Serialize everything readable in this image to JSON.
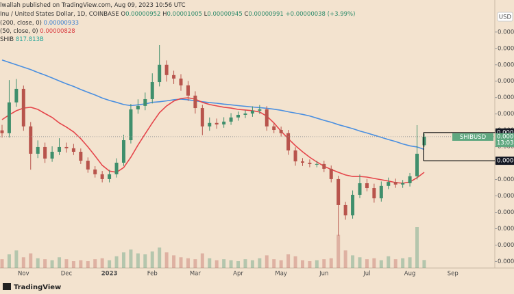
{
  "header": {
    "publisher": "lwallah published on TradingView.com, Aug 09, 2023 10:56 UTC",
    "footer": "TradingView"
  },
  "chart_data": {
    "type": "candlestick",
    "symbol": "Inu / United States Dollar, 1D, COINBASE",
    "ohlc_letters": {
      "open": "O",
      "high": "H",
      "low": "L",
      "close": "C"
    },
    "change": "+0.00000038 (+3.99%)",
    "currency": "USD",
    "up_color": "#3f8f6c",
    "down_color": "#b8544c",
    "categories": [
      null,
      null,
      null,
      "Nov",
      null,
      null,
      null,
      null,
      null,
      "Dec",
      null,
      null,
      null,
      null,
      null,
      "2023",
      null,
      null,
      null,
      null,
      null,
      "Feb",
      null,
      null,
      null,
      null,
      null,
      "Mar",
      null,
      null,
      null,
      null,
      null,
      "Apr",
      null,
      null,
      null,
      null,
      null,
      "May",
      null,
      null,
      null,
      null,
      null,
      "Jun",
      null,
      null,
      null,
      null,
      null,
      "Jul",
      null,
      null,
      null,
      null,
      null,
      "Aug",
      null,
      null,
      null,
      null,
      null,
      "Sep"
    ],
    "open": [
      1.02e-05,
      1.007e-05,
      1.148e-05,
      1.21e-05,
      1.038e-05,
      9.13e-06,
      9.44e-06,
      8.91e-06,
      9.22e-06,
      9.44e-06,
      9.38e-06,
      9.22e-06,
      8.81e-06,
      8.41e-06,
      8.19e-06,
      7.97e-06,
      8.19e-06,
      8.72e-06,
      9.75e-06,
      1.116e-05,
      1.132e-05,
      1.163e-05,
      1.241e-05,
      1.32e-05,
      1.273e-05,
      1.257e-05,
      1.226e-05,
      1.179e-05,
      1.122e-05,
      1.038e-05,
      1.054e-05,
      1.047e-05,
      1.06e-05,
      1.079e-05,
      1.091e-05,
      1.097e-05,
      1.11e-05,
      1.116e-05,
      1.038e-05,
      1.022e-05,
      1.007e-05,
      9.28e-06,
      8.78e-06,
      8.72e-06,
      8.66e-06,
      8.66e-06,
      8.44e-06,
      7.97e-06,
      6.78e-06,
      6.31e-06,
      7.25e-06,
      7.78e-06,
      7.56e-06,
      7.09e-06,
      7.66e-06,
      7.84e-06,
      7.72e-06,
      7.78e-06,
      8.1e-06,
      9.52e-06,
      null,
      null,
      null,
      null
    ],
    "high": [
      1.045e-05,
      1.25e-05,
      1.255e-05,
      1.225e-05,
      1.058e-05,
      9.74e-06,
      9.64e-06,
      9.47e-06,
      9.84e-06,
      9.64e-06,
      9.58e-06,
      9.37e-06,
      8.96e-06,
      8.56e-06,
      8.34e-06,
      8.39e-06,
      8.92e-06,
      1e-05,
      1.141e-05,
      1.162e-05,
      1.193e-05,
      1.281e-05,
      1.41e-05,
      1.34e-05,
      1.293e-05,
      1.277e-05,
      1.246e-05,
      1.199e-05,
      1.137e-05,
      1.079e-05,
      1.074e-05,
      1.08e-05,
      1.099e-05,
      1.106e-05,
      1.112e-05,
      1.13e-05,
      1.136e-05,
      1.131e-05,
      1.053e-05,
      1.037e-05,
      1.022e-05,
      9.43e-06,
      8.93e-06,
      8.87e-06,
      8.81e-06,
      8.81e-06,
      8.59e-06,
      8.12e-06,
      6.93e-06,
      7.45e-06,
      8.18e-06,
      7.98e-06,
      7.76e-06,
      7.86e-06,
      8.04e-06,
      7.99e-06,
      7.93e-06,
      8.25e-06,
      1.044e-05,
      1.005e-05,
      null,
      null,
      null,
      null
    ],
    "low": [
      9.87e-06,
      9.87e-06,
      1.128e-05,
      1.018e-05,
      8.4e-06,
      8.93e-06,
      8.71e-06,
      8.76e-06,
      9.07e-06,
      9.18e-06,
      9.07e-06,
      8.66e-06,
      8.26e-06,
      8.04e-06,
      7.82e-06,
      7.82e-06,
      8.04e-06,
      8.57e-06,
      9.6e-06,
      1.096e-05,
      1.112e-05,
      1.143e-05,
      1.221e-05,
      1.243e-05,
      1.232e-05,
      1.201e-05,
      1.154e-05,
      1.097e-05,
      9.98e-06,
      1.018e-05,
      1.027e-05,
      1.032e-05,
      1.045e-05,
      1.064e-05,
      1.076e-05,
      1.082e-05,
      1.095e-05,
      1.018e-05,
      1.007e-05,
      9.92e-06,
      9.08e-06,
      8.58e-06,
      8.57e-06,
      8.51e-06,
      8.51e-06,
      8.29e-06,
      7.82e-06,
      5.38e-06,
      6.11e-06,
      6.16e-06,
      7.1e-06,
      7.41e-06,
      6.89e-06,
      6.94e-06,
      7.51e-06,
      7.57e-06,
      7.57e-06,
      7.63e-06,
      7.95e-06,
      9.45e-06,
      null,
      null,
      null,
      null
    ],
    "close": [
      1.007e-05,
      1.148e-05,
      1.21e-05,
      1.038e-05,
      9.13e-06,
      9.44e-06,
      8.91e-06,
      9.22e-06,
      9.44e-06,
      9.38e-06,
      9.22e-06,
      8.81e-06,
      8.41e-06,
      8.19e-06,
      7.97e-06,
      8.19e-06,
      8.72e-06,
      9.75e-06,
      1.116e-05,
      1.132e-05,
      1.163e-05,
      1.241e-05,
      1.32e-05,
      1.273e-05,
      1.257e-05,
      1.226e-05,
      1.179e-05,
      1.122e-05,
      1.038e-05,
      1.054e-05,
      1.047e-05,
      1.06e-05,
      1.079e-05,
      1.091e-05,
      1.097e-05,
      1.11e-05,
      1.116e-05,
      1.038e-05,
      1.022e-05,
      1.007e-05,
      9.28e-06,
      8.78e-06,
      8.72e-06,
      8.66e-06,
      8.66e-06,
      8.44e-06,
      7.97e-06,
      6.78e-06,
      6.31e-06,
      7.25e-06,
      7.78e-06,
      7.56e-06,
      7.09e-06,
      7.66e-06,
      7.84e-06,
      7.72e-06,
      7.78e-06,
      8.1e-06,
      9.13e-06,
      9.91e-06,
      null,
      null,
      null,
      null
    ],
    "moving_averages": [
      {
        "name": "(200, close, 0)",
        "color": "#4a8fe0",
        "values": [
          1.342e-05,
          1.331e-05,
          1.32e-05,
          1.309e-05,
          1.298e-05,
          1.285e-05,
          1.273e-05,
          1.26e-05,
          1.246e-05,
          1.233e-05,
          1.221e-05,
          1.207e-05,
          1.194e-05,
          1.182e-05,
          1.168e-05,
          1.157e-05,
          1.148e-05,
          1.138e-05,
          1.133e-05,
          1.137e-05,
          1.141e-05,
          1.148e-05,
          1.151e-05,
          1.155e-05,
          1.16e-05,
          1.163e-05,
          1.16e-05,
          1.155e-05,
          1.151e-05,
          1.147e-05,
          1.144e-05,
          1.14e-05,
          1.137e-05,
          1.133e-05,
          1.13e-05,
          1.127e-05,
          1.124e-05,
          1.121e-05,
          1.117e-05,
          1.112e-05,
          1.105e-05,
          1.099e-05,
          1.093e-05,
          1.086e-05,
          1.076e-05,
          1.066e-05,
          1.057e-05,
          1.046e-05,
          1.037e-05,
          1.028e-05,
          1.017e-05,
          1.008e-05,
          9.98e-06,
          9.88e-06,
          9.78e-06,
          9.69e-06,
          9.58e-06,
          9.49e-06,
          9.44e-06,
          9.33e-06,
          null,
          null,
          null,
          null
        ]
      },
      {
        "name": "(50, close, 0)",
        "color": "#e5464b",
        "values": [
          1.069e-05,
          1.091e-05,
          1.11e-05,
          1.122e-05,
          1.126e-05,
          1.116e-05,
          1.097e-05,
          1.079e-05,
          1.054e-05,
          1.035e-05,
          1.013e-05,
          9.82e-06,
          9.44e-06,
          9.03e-06,
          8.6e-06,
          8.34e-06,
          8.28e-06,
          8.5e-06,
          8.97e-06,
          9.53e-06,
          1.004e-05,
          1.054e-05,
          1.101e-05,
          1.132e-05,
          1.154e-05,
          1.166e-05,
          1.169e-05,
          1.163e-05,
          1.148e-05,
          1.138e-05,
          1.132e-05,
          1.126e-05,
          1.122e-05,
          1.116e-05,
          1.113e-05,
          1.11e-05,
          1.104e-05,
          1.085e-05,
          1.054e-05,
          1.016e-05,
          9.82e-06,
          9.5e-06,
          9.22e-06,
          8.97e-06,
          8.75e-06,
          8.56e-06,
          8.41e-06,
          8.28e-06,
          8.16e-06,
          8.09e-06,
          8.09e-06,
          8.06e-06,
          8e-06,
          7.94e-06,
          7.88e-06,
          7.81e-06,
          7.78e-06,
          7.84e-06,
          8.03e-06,
          8.28e-06,
          null,
          null,
          null,
          null
        ]
      }
    ],
    "volume": {
      "name": "SHIB",
      "color": "#26a69a",
      "value_label": "817.813B",
      "values": [
        900,
        1400,
        1800,
        1100,
        1500,
        1000,
        900,
        800,
        1100,
        900,
        700,
        800,
        700,
        900,
        1000,
        800,
        1200,
        1600,
        1900,
        1500,
        1400,
        1700,
        2100,
        1600,
        1300,
        1100,
        1000,
        900,
        1500,
        1000,
        800,
        900,
        800,
        700,
        900,
        800,
        1000,
        1300,
        900,
        800,
        1400,
        1200,
        800,
        700,
        800,
        900,
        1000,
        3400,
        1800,
        1300,
        1100,
        900,
        1000,
        800,
        1200,
        900,
        1000,
        1100,
        4200,
        817.813,
        null,
        null,
        null,
        null
      ]
    },
    "ylim": [
      3.9e-06,
      1.579e-05
    ],
    "yticks": [
      {
        "value": 4.2e-06,
        "label": "0.0000"
      },
      {
        "value": 4.95e-06,
        "label": "0.0000"
      },
      {
        "value": 5.7e-06,
        "label": "0.0000"
      },
      {
        "value": 6.45e-06,
        "label": "0.0000"
      },
      {
        "value": 7.2e-06,
        "label": "0.0000"
      },
      {
        "value": 7.95e-06,
        "label": "0.0000"
      },
      {
        "value": 8.7e-06,
        "label": "0.0000"
      },
      {
        "value": 9.45e-06,
        "label": "0.0000"
      },
      {
        "value": 1.02e-05,
        "label": "0.0000"
      },
      {
        "value": 1.095e-05,
        "label": "0.0000"
      },
      {
        "value": 1.17e-05,
        "label": "0.0000"
      },
      {
        "value": 1.245e-05,
        "label": "0.0000"
      },
      {
        "value": 1.32e-05,
        "label": "0.0000"
      },
      {
        "value": 1.395e-05,
        "label": "0.0000"
      },
      {
        "value": 1.47e-05,
        "label": "0.0000"
      }
    ],
    "levels": [
      {
        "value": 1.01e-05,
        "label": "0.00000"
      },
      {
        "value": 8.81e-06,
        "label": "0.00000"
      }
    ],
    "price_tag": {
      "symbol": "SHIBUSD",
      "label": "0.00000",
      "countdown": "13:03",
      "color": "#5fa880"
    }
  }
}
